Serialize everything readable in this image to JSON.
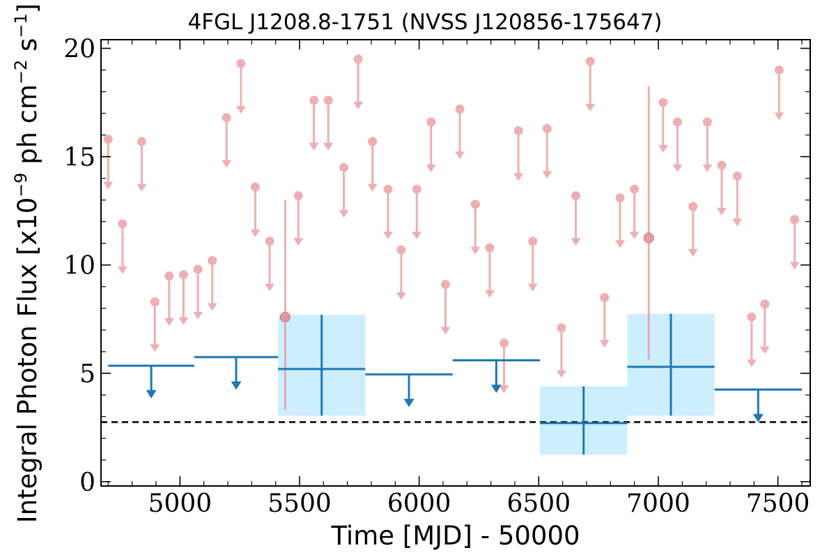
{
  "chart_data": {
    "type": "scatter",
    "title": "4FGL J1208.8-1751 (NVSS J120856-175647)",
    "xlabel": "Time [MJD] - 50000",
    "ylabel": "Integral Photon Flux [x10",
    "ylabel_exponent": "−9",
    "ylabel_mid": " ph cm",
    "ylabel_exponent2": "−2",
    "ylabel_mid2": " s",
    "ylabel_exponent3": "−1",
    "ylabel_end": "]",
    "xlim": [
      4670,
      7635
    ],
    "ylim": [
      -0.2,
      20.4
    ],
    "x_ticks": [
      5000,
      5500,
      6000,
      6500,
      7000,
      7500
    ],
    "y_ticks": [
      0,
      5,
      10,
      15,
      20
    ],
    "x_tick_labels": [
      "5000",
      "5500",
      "6000",
      "6500",
      "7000",
      "7500"
    ],
    "y_tick_labels": [
      "0",
      "5",
      "10",
      "15",
      "20"
    ],
    "x_minor_step": 100,
    "y_minor_step": 1,
    "reference_line": {
      "y": 2.75,
      "style": "dashed",
      "color": "#000000"
    },
    "series": [
      {
        "color": "#e8959a",
        "upper_limits": [
          {
            "x": 4700,
            "y": 15.8
          },
          {
            "x": 4760,
            "y": 11.9
          },
          {
            "x": 4840,
            "y": 15.7
          },
          {
            "x": 4895,
            "y": 8.3
          },
          {
            "x": 4955,
            "y": 9.5
          },
          {
            "x": 5015,
            "y": 9.55
          },
          {
            "x": 5075,
            "y": 9.8
          },
          {
            "x": 5135,
            "y": 10.2
          },
          {
            "x": 5195,
            "y": 16.8
          },
          {
            "x": 5255,
            "y": 19.3
          },
          {
            "x": 5315,
            "y": 13.6
          },
          {
            "x": 5375,
            "y": 11.1
          },
          {
            "x": 5495,
            "y": 13.2
          },
          {
            "x": 5560,
            "y": 17.6
          },
          {
            "x": 5620,
            "y": 17.6
          },
          {
            "x": 5685,
            "y": 14.5
          },
          {
            "x": 5745,
            "y": 19.5
          },
          {
            "x": 5805,
            "y": 15.7
          },
          {
            "x": 5870,
            "y": 13.5
          },
          {
            "x": 5925,
            "y": 10.7
          },
          {
            "x": 5990,
            "y": 13.5
          },
          {
            "x": 6050,
            "y": 16.6
          },
          {
            "x": 6110,
            "y": 9.1
          },
          {
            "x": 6170,
            "y": 17.2
          },
          {
            "x": 6235,
            "y": 12.8
          },
          {
            "x": 6295,
            "y": 10.8
          },
          {
            "x": 6355,
            "y": 6.4
          },
          {
            "x": 6415,
            "y": 16.2
          },
          {
            "x": 6475,
            "y": 11.1
          },
          {
            "x": 6535,
            "y": 16.3
          },
          {
            "x": 6595,
            "y": 7.1
          },
          {
            "x": 6655,
            "y": 13.2
          },
          {
            "x": 6715,
            "y": 19.4
          },
          {
            "x": 6775,
            "y": 8.5
          },
          {
            "x": 6840,
            "y": 13.1
          },
          {
            "x": 6900,
            "y": 13.5
          },
          {
            "x": 7020,
            "y": 17.5
          },
          {
            "x": 7080,
            "y": 16.6
          },
          {
            "x": 7145,
            "y": 12.7
          },
          {
            "x": 7205,
            "y": 16.6
          },
          {
            "x": 7265,
            "y": 14.6
          },
          {
            "x": 7330,
            "y": 14.1
          },
          {
            "x": 7390,
            "y": 7.6
          },
          {
            "x": 7445,
            "y": 8.2
          },
          {
            "x": 7505,
            "y": 19.0
          },
          {
            "x": 7570,
            "y": 12.1
          }
        ],
        "detections": [
          {
            "x": 5440,
            "y": 7.6,
            "yerr_low": 3.3,
            "yerr_high": 13.0
          },
          {
            "x": 6960,
            "y": 11.25,
            "yerr_low": 5.65,
            "yerr_high": 18.25
          }
        ]
      },
      {
        "color": "#1f77b4",
        "band_color": "#cdeefd",
        "bins": [
          {
            "x_start": 4700,
            "x_end": 5060,
            "y": 5.35,
            "upper_limit": true
          },
          {
            "x_start": 5060,
            "x_end": 5410,
            "y": 5.75,
            "upper_limit": true
          },
          {
            "x_start": 5410,
            "x_end": 5775,
            "y": 5.2,
            "y_low": 3.05,
            "y_high": 7.7,
            "upper_limit": false
          },
          {
            "x_start": 5775,
            "x_end": 6140,
            "y": 4.95,
            "upper_limit": true
          },
          {
            "x_start": 6140,
            "x_end": 6505,
            "y": 5.6,
            "upper_limit": true
          },
          {
            "x_start": 6505,
            "x_end": 6870,
            "y": 2.7,
            "y_low": 1.25,
            "y_high": 4.4,
            "upper_limit": false
          },
          {
            "x_start": 6870,
            "x_end": 7235,
            "y": 5.3,
            "y_low": 3.05,
            "y_high": 7.75,
            "upper_limit": false
          },
          {
            "x_start": 7235,
            "x_end": 7600,
            "y": 4.25,
            "upper_limit": true
          }
        ]
      }
    ]
  }
}
